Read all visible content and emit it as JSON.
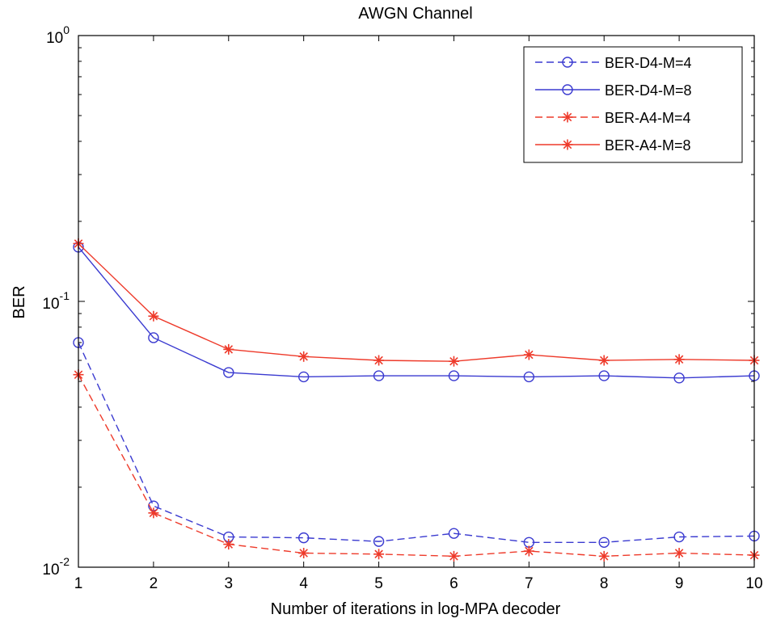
{
  "chart_data": {
    "type": "line",
    "title": "AWGN Channel",
    "xlabel": "Number of iterations in log-MPA decoder",
    "ylabel": "BER",
    "yscale": "log",
    "xlim": [
      1,
      10
    ],
    "ylim": [
      0.01,
      1
    ],
    "grid": false,
    "legend_position": "top-right",
    "x": [
      1,
      2,
      3,
      4,
      5,
      6,
      7,
      8,
      9,
      10
    ],
    "x_ticks": [
      "1",
      "2",
      "3",
      "4",
      "5",
      "6",
      "7",
      "8",
      "9",
      "10"
    ],
    "y_ticks": [
      {
        "value": 1,
        "base": "10",
        "exp": "0"
      },
      {
        "value": 0.1,
        "base": "10",
        "exp": "-1"
      },
      {
        "value": 0.01,
        "base": "10",
        "exp": "-2"
      }
    ],
    "series": [
      {
        "name": "BER-D4-M=4",
        "color": "#3a3ad0",
        "dash": "dashed",
        "marker": "circle",
        "values": [
          0.07,
          0.017,
          0.013,
          0.0129,
          0.0125,
          0.0134,
          0.0124,
          0.0124,
          0.013,
          0.0131
        ]
      },
      {
        "name": "BER-D4-M=8",
        "color": "#3a3ad0",
        "dash": "solid",
        "marker": "circle",
        "values": [
          0.16,
          0.073,
          0.054,
          0.052,
          0.0525,
          0.0525,
          0.052,
          0.0525,
          0.0515,
          0.0525
        ]
      },
      {
        "name": "BER-A4-M=4",
        "color": "#ee3a2a",
        "dash": "dashed",
        "marker": "star",
        "values": [
          0.053,
          0.016,
          0.0122,
          0.0113,
          0.0112,
          0.011,
          0.0115,
          0.011,
          0.0113,
          0.0111
        ]
      },
      {
        "name": "BER-A4-M=8",
        "color": "#ee3a2a",
        "dash": "solid",
        "marker": "star",
        "values": [
          0.165,
          0.088,
          0.066,
          0.062,
          0.06,
          0.0595,
          0.063,
          0.06,
          0.0605,
          0.06
        ]
      }
    ]
  }
}
